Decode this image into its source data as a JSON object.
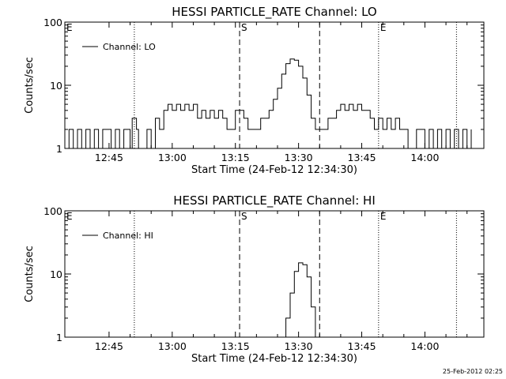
{
  "chart_data": [
    {
      "type": "line",
      "title": "HESSI PARTICLE_RATE Channel: LO",
      "xlabel": "Start Time (24-Feb-12 12:34:30)",
      "ylabel": "Counts/sec",
      "yscale": "log",
      "ylim": [
        1,
        100
      ],
      "xlim": [
        "12:34:30",
        "14:14:00"
      ],
      "x_ticks": [
        "12:45",
        "13:00",
        "13:15",
        "13:30",
        "13:45",
        "14:00"
      ],
      "y_ticks": [
        "1",
        "10",
        "100"
      ],
      "legend": "top-left",
      "grid": false,
      "series": [
        {
          "name": "Channel: LO",
          "color": "#000000",
          "x": [
            "12:34:30",
            "12:35:30",
            "12:36:30",
            "12:37:30",
            "12:38:30",
            "12:39:30",
            "12:40:30",
            "12:41:30",
            "12:42:30",
            "12:43:30",
            "12:44:30",
            "12:45:30",
            "12:46:30",
            "12:47:30",
            "12:48:30",
            "12:49:00",
            "12:50:00",
            "12:50:30",
            "12:51:30",
            "12:52:00",
            "12:53:00",
            "12:54:00",
            "12:55:00",
            "12:56:00",
            "12:57:00",
            "12:58:00",
            "12:59:00",
            "13:00:00",
            "13:01:00",
            "13:02:00",
            "13:03:00",
            "13:04:00",
            "13:05:00",
            "13:06:00",
            "13:07:00",
            "13:08:00",
            "13:09:00",
            "13:10:00",
            "13:11:00",
            "13:12:00",
            "13:13:00",
            "13:14:00",
            "13:15:00",
            "13:16:00",
            "13:16:30",
            "13:17:00",
            "13:18:00",
            "13:19:00",
            "13:20:00",
            "13:21:00",
            "13:22:00",
            "13:23:00",
            "13:24:00",
            "13:25:00",
            "13:26:00",
            "13:27:00",
            "13:28:00",
            "13:29:00",
            "13:30:00",
            "13:31:00",
            "13:32:00",
            "13:33:00",
            "13:34:00",
            "13:35:00",
            "13:36:00",
            "13:37:00",
            "13:38:00",
            "13:39:00",
            "13:40:00",
            "13:41:00",
            "13:42:00",
            "13:43:00",
            "13:44:00",
            "13:45:00",
            "13:46:00",
            "13:47:00",
            "13:48:00",
            "13:49:00",
            "13:50:00",
            "13:51:00",
            "13:52:00",
            "13:53:00",
            "13:54:00",
            "13:55:00",
            "13:56:00",
            "13:57:00",
            "13:58:00",
            "13:59:00",
            "14:00:00",
            "14:01:00",
            "14:02:00",
            "14:03:00",
            "14:04:00",
            "14:05:00",
            "14:06:00",
            "14:07:00",
            "14:08:00",
            "14:09:00",
            "14:10:00",
            "14:11:00"
          ],
          "values": [
            1,
            2,
            1,
            2,
            1,
            2,
            1,
            2,
            1,
            2,
            2,
            1,
            2,
            1,
            2,
            2,
            1,
            3,
            2,
            1,
            1,
            2,
            1,
            3,
            2,
            4,
            5,
            4,
            5,
            4,
            5,
            4,
            5,
            3,
            4,
            3,
            4,
            3,
            4,
            3,
            2,
            2,
            4,
            4,
            4,
            3,
            2,
            2,
            2,
            3,
            3,
            4,
            6,
            9,
            15,
            22,
            26,
            25,
            20,
            13,
            7,
            3,
            2,
            2,
            2,
            3,
            3,
            4,
            5,
            4,
            5,
            4,
            5,
            4,
            4,
            3,
            2,
            3,
            2,
            3,
            2,
            3,
            2,
            2,
            1,
            1,
            2,
            2,
            1,
            2,
            1,
            2,
            1,
            2,
            1,
            2,
            1,
            2,
            1,
            2
          ]
        }
      ],
      "annotations": [
        {
          "label": "E",
          "x": "12:34:30",
          "style": "solid"
        },
        {
          "label": "",
          "x": "12:51:00",
          "style": "dotted"
        },
        {
          "label": "S",
          "x": "13:16:00",
          "style": "dashed"
        },
        {
          "label": "",
          "x": "13:35:00",
          "style": "dashed"
        },
        {
          "label": "E",
          "x": "13:49:00",
          "style": "dotted"
        },
        {
          "label": "",
          "x": "14:07:30",
          "style": "dotted"
        }
      ]
    },
    {
      "type": "line",
      "title": "HESSI PARTICLE_RATE Channel: HI",
      "xlabel": "Start Time (24-Feb-12 12:34:30)",
      "ylabel": "Counts/sec",
      "yscale": "log",
      "ylim": [
        1,
        100
      ],
      "xlim": [
        "12:34:30",
        "14:14:00"
      ],
      "x_ticks": [
        "12:45",
        "13:00",
        "13:15",
        "13:30",
        "13:45",
        "14:00"
      ],
      "y_ticks": [
        "1",
        "10",
        "100"
      ],
      "legend": "top-left",
      "grid": false,
      "series": [
        {
          "name": "Channel: HI",
          "color": "#000000",
          "x": [
            "13:26:00",
            "13:27:00",
            "13:28:00",
            "13:29:00",
            "13:30:00",
            "13:31:00",
            "13:32:00",
            "13:33:00",
            "13:34:00"
          ],
          "values": [
            1,
            2,
            5,
            11,
            15,
            14,
            9,
            3,
            1
          ]
        }
      ],
      "annotations": [
        {
          "label": "E",
          "x": "12:34:30",
          "style": "solid"
        },
        {
          "label": "",
          "x": "12:51:00",
          "style": "dotted"
        },
        {
          "label": "S",
          "x": "13:16:00",
          "style": "dashed"
        },
        {
          "label": "",
          "x": "13:35:00",
          "style": "dashed"
        },
        {
          "label": "E",
          "x": "13:49:00",
          "style": "dotted"
        },
        {
          "label": "",
          "x": "14:07:30",
          "style": "dotted"
        }
      ]
    }
  ],
  "footer": {
    "timestamp": "25-Feb-2012 02:25"
  }
}
